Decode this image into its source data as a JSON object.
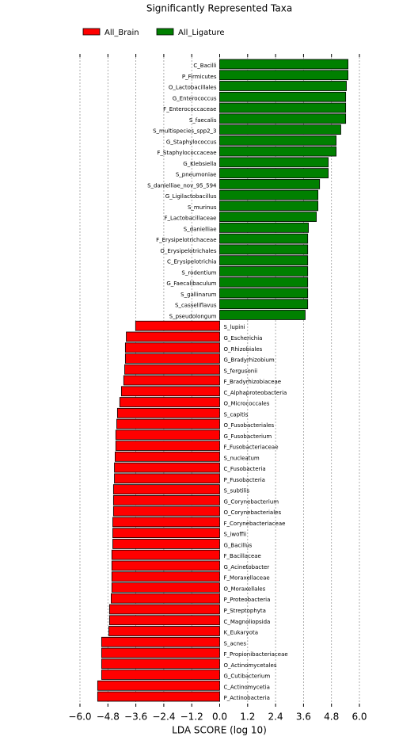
{
  "chart_data": {
    "type": "bar",
    "orientation": "horizontal",
    "title": "Significantly Represented Taxa",
    "x_label": "LDA SCORE (log 10)",
    "categories": [
      "C_Bacilli",
      "P_Firmicutes",
      "O_Lactobacillales",
      "G_Enterococcus",
      "F_Enterococcaceae",
      "S_faecalis",
      "S_multispecies_spp2_3",
      "G_Staphylococcus",
      "F_Staphylococcaceae",
      "G_Klebsiella",
      "S_pneumoniae",
      "S_danielliae_nov_95_594",
      "G_Ligilactobacillus",
      "S_murinus",
      "F_Lactobacillaceae",
      "S_danielliae",
      "F_Erysipelotrichaceae",
      "O_Erysipelotrichales",
      "C_Erysipelotrichia",
      "S_rodentium",
      "G_Faecalibaculum",
      "S_gallinarum",
      "S_casseliflavus",
      "S_pseudolongum",
      "S_lupini",
      "G_Escherichia",
      "O_Rhizobiales",
      "G_Bradyrhizobium",
      "S_fergusonii",
      "F_Bradyrhizobiaceae",
      "C_Alphaproteobacteria",
      "O_Micrococcales",
      "S_capitis",
      "O_Fusobacteriales",
      "G_Fusobacterium",
      "F_Fusobacteriaceae",
      "S_nucleatum",
      "C_Fusobacteria",
      "P_Fusobacteria",
      "S_subtilis",
      "G_Corynebacterium",
      "O_Corynebacteriales",
      "F_Corynebacteriaceae",
      "S_iwoffii",
      "G_Bacillus",
      "F_Bacillaceae",
      "G_Acinetobacter",
      "F_Moraxellaceae",
      "O_Moraxellales",
      "P_Proteobacteria",
      "P_Streptophyta",
      "C_Magnoliopsida",
      "K_Eukaryota",
      "S_acnes",
      "F_Propionibacteriaceae",
      "O_Actinomycetales",
      "G_Cutibacterium",
      "C_Actinomycetia",
      "P_Actinobacteria"
    ],
    "series": [
      {
        "name": "All_Brain",
        "color": "#ff0000",
        "values": [
          null,
          null,
          null,
          null,
          null,
          null,
          null,
          null,
          null,
          null,
          null,
          null,
          null,
          null,
          null,
          null,
          null,
          null,
          null,
          null,
          null,
          null,
          null,
          null,
          -3.61,
          -4.01,
          -4.05,
          -4.05,
          -4.08,
          -4.12,
          -4.22,
          -4.29,
          -4.39,
          -4.42,
          -4.46,
          -4.46,
          -4.49,
          -4.52,
          -4.52,
          -4.56,
          -4.56,
          -4.56,
          -4.59,
          -4.59,
          -4.59,
          -4.63,
          -4.63,
          -4.63,
          -4.63,
          -4.66,
          -4.73,
          -4.73,
          -4.76,
          -5.07,
          -5.07,
          -5.07,
          -5.07,
          -5.24,
          -5.24
        ]
      },
      {
        "name": "All_Ligature",
        "color": "#008000",
        "values": [
          5.51,
          5.51,
          5.44,
          5.41,
          5.41,
          5.41,
          5.2,
          5.0,
          5.0,
          4.66,
          4.66,
          4.29,
          4.22,
          4.22,
          4.15,
          3.81,
          3.78,
          3.78,
          3.78,
          3.78,
          3.78,
          3.78,
          3.78,
          3.67,
          null,
          null,
          null,
          null,
          null,
          null,
          null,
          null,
          null,
          null,
          null,
          null,
          null,
          null,
          null,
          null,
          null,
          null,
          null,
          null,
          null,
          null,
          null,
          null,
          null,
          null,
          null,
          null,
          null,
          null,
          null,
          null,
          null,
          null,
          null
        ]
      }
    ],
    "xlim": [
      -6.0,
      6.0
    ],
    "xticks": [
      {
        "value": -6.0,
        "label": "−6.0"
      },
      {
        "value": -4.8,
        "label": "−4.8"
      },
      {
        "value": -3.6,
        "label": "−3.6"
      },
      {
        "value": -2.4,
        "label": "−2.4"
      },
      {
        "value": -1.2,
        "label": "−1.2"
      },
      {
        "value": 0.0,
        "label": "0.0"
      },
      {
        "value": 1.2,
        "label": "1.2"
      },
      {
        "value": 2.4,
        "label": "2.4"
      },
      {
        "value": 3.6,
        "label": "3.6"
      },
      {
        "value": 4.8,
        "label": "4.8"
      },
      {
        "value": 6.0,
        "label": "6.0"
      }
    ],
    "grid": true,
    "legend": "top-left"
  }
}
